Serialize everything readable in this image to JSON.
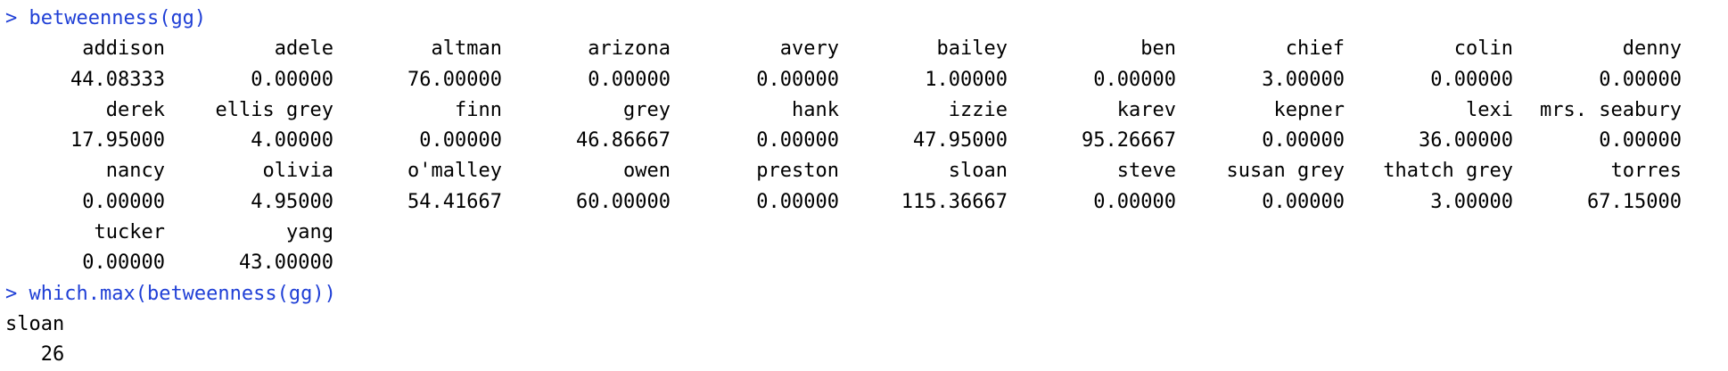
{
  "console": {
    "prompt_char": ">",
    "command1": "betweenness(gg)",
    "rows": [
      {
        "names": [
          "addison",
          "adele",
          "altman",
          "arizona",
          "avery",
          "bailey",
          "ben",
          "chief",
          "colin",
          "denny"
        ],
        "values": [
          "44.08333",
          "0.00000",
          "76.00000",
          "0.00000",
          "0.00000",
          "1.00000",
          "0.00000",
          "3.00000",
          "0.00000",
          "0.00000"
        ]
      },
      {
        "names": [
          "derek",
          "ellis grey",
          "finn",
          "grey",
          "hank",
          "izzie",
          "karev",
          "kepner",
          "lexi",
          "mrs. seabury"
        ],
        "values": [
          "17.95000",
          "4.00000",
          "0.00000",
          "46.86667",
          "0.00000",
          "47.95000",
          "95.26667",
          "0.00000",
          "36.00000",
          "0.00000"
        ]
      },
      {
        "names": [
          "nancy",
          "olivia",
          "o'malley",
          "owen",
          "preston",
          "sloan",
          "steve",
          "susan grey",
          "thatch grey",
          "torres"
        ],
        "values": [
          "0.00000",
          "4.95000",
          "54.41667",
          "60.00000",
          "0.00000",
          "115.36667",
          "0.00000",
          "0.00000",
          "3.00000",
          "67.15000"
        ]
      },
      {
        "names": [
          "tucker",
          "yang"
        ],
        "values": [
          "0.00000",
          "43.00000"
        ]
      }
    ],
    "command2": "which.max(betweenness(gg))",
    "result_name": "sloan",
    "result_value": "26"
  }
}
